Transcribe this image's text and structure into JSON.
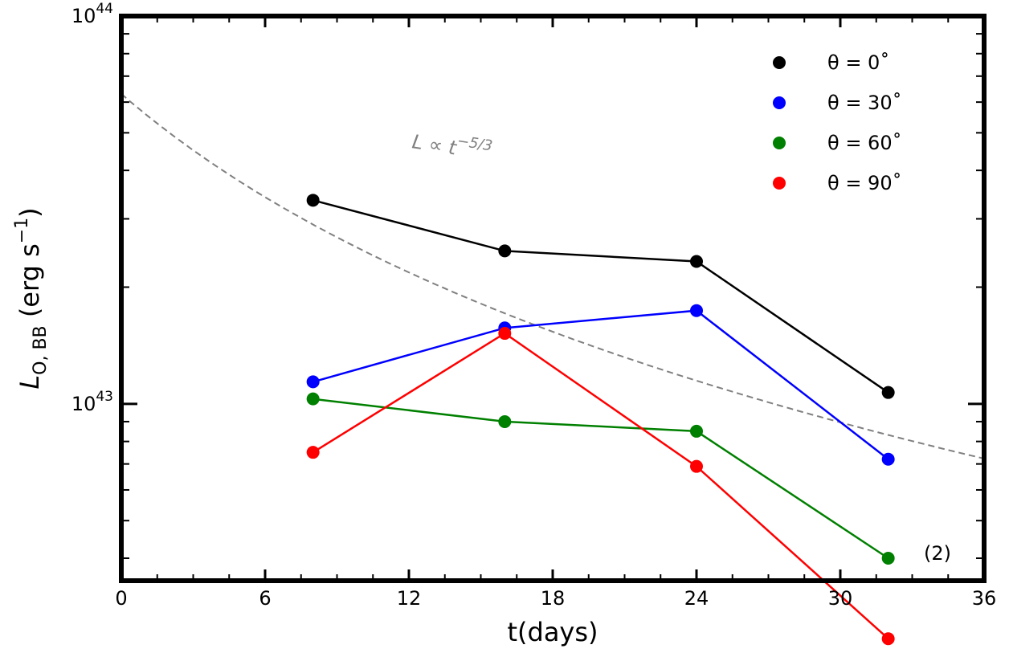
{
  "chart_data": {
    "type": "line",
    "yscale": "log",
    "xlabel": "t(days)",
    "ylabel": {
      "main": "L",
      "sub": "O, BB",
      "unit_prefix": " (erg s",
      "unit_sup": "−1",
      "unit_suffix": ")"
    },
    "xlim": [
      0,
      36
    ],
    "ylim": [
      3.5e+42,
      1e+44
    ],
    "x_ticks": [
      0,
      6,
      12,
      18,
      24,
      30,
      36
    ],
    "x_tick_labels": [
      "0",
      "6",
      "12",
      "18",
      "24",
      "30",
      "36"
    ],
    "y_ticks_labeled": [
      {
        "value": 1e+44,
        "base": "10",
        "exp": "44"
      },
      {
        "value": 1e+43,
        "base": "10",
        "exp": "43"
      }
    ],
    "series": [
      {
        "name": "θ = 0˚",
        "color": "#000000",
        "x": [
          8,
          16,
          24,
          32
        ],
        "y": [
          3.35e+43,
          2.48e+43,
          2.33e+43,
          1.07e+43
        ]
      },
      {
        "name": "θ = 30˚",
        "color": "#0000ff",
        "x": [
          8,
          16,
          24,
          32
        ],
        "y": [
          1.14e+43,
          1.57e+43,
          1.74e+43,
          7.2e+42
        ]
      },
      {
        "name": "θ = 60˚",
        "color": "#008000",
        "x": [
          8,
          16,
          24,
          32
        ],
        "y": [
          1.03e+43,
          9e+42,
          8.5e+42,
          4e+42
        ]
      },
      {
        "name": "θ = 90˚",
        "color": "#ff0000",
        "x": [
          8,
          16,
          24,
          32
        ],
        "y": [
          7.5e+42,
          1.52e+43,
          6.9e+42,
          2.48e+42
        ]
      }
    ],
    "reference_line": {
      "label_main": "L ∝ t",
      "label_sup": "−5/3",
      "color": "#808080",
      "style": "dashed",
      "coef": 6.3e+43,
      "t0": 0.0,
      "t_offset": 13.5,
      "power": -1.6667
    },
    "annotations": [
      {
        "text": "(2)",
        "location": "bottom-right"
      }
    ],
    "legend": {
      "location": "top-right",
      "markers_only": true
    }
  }
}
